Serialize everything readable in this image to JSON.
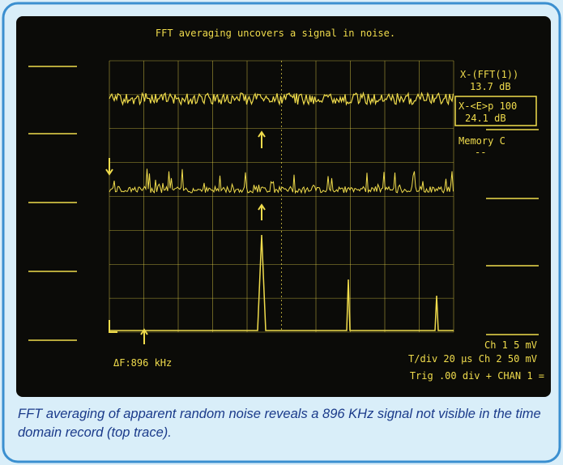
{
  "screen": {
    "title": "FFT averaging uncovers a signal in noise.",
    "readouts": [
      "X-(FFT(1))",
      "13.7 dB",
      "X-<E>p 100",
      "24.1 dB",
      "Memory C",
      "--"
    ],
    "delta_f": "ΔF:896 kHz",
    "status": [
      "Ch 1   5 mV",
      "T/div 20 µs  Ch 2  50 mV",
      "Trig   .00 div + CHAN 1 ="
    ]
  },
  "caption": "FFT averaging of apparent random noise reveals a 896 KHz signal not visible in the time domain record (top trace)."
}
